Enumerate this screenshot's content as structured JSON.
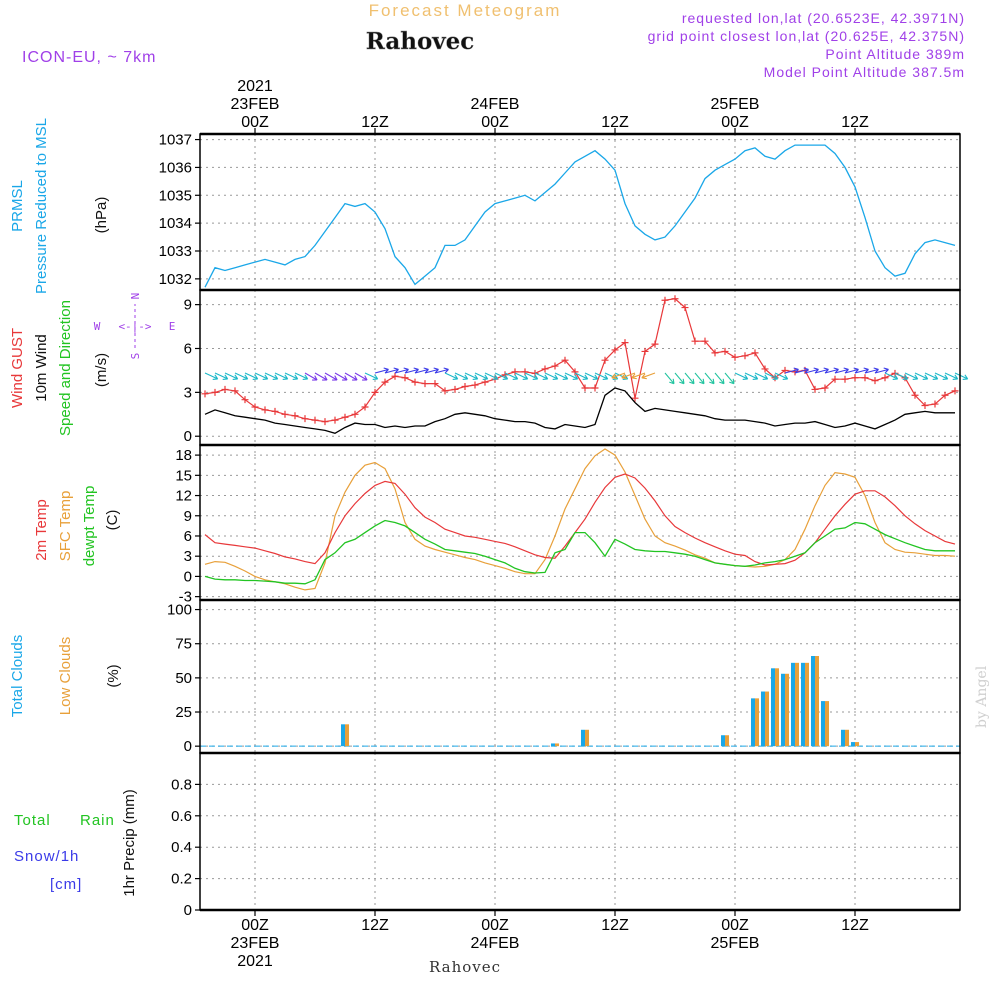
{
  "header": {
    "title": "Rahovec",
    "subtitle": "Forecast Meteogram",
    "model": "ICON-EU, ~ 7km",
    "requested": "requested lon,lat (20.6523E, 42.3971N)",
    "grid_point": "grid point closest lon,lat (20.625E, 42.375N)",
    "point_alt": "Point Altitude 389m",
    "model_alt": "Model Point Altitude 387.5m",
    "watermark": "by Angel",
    "footer": "Rahovec"
  },
  "time_axis": {
    "top": [
      {
        "h": 0,
        "lines": [
          "2021",
          "23FEB",
          "00Z"
        ]
      },
      {
        "h": 12,
        "lines": [
          "12Z"
        ]
      },
      {
        "h": 24,
        "lines": [
          "24FEB",
          "00Z"
        ]
      },
      {
        "h": 36,
        "lines": [
          "12Z"
        ]
      },
      {
        "h": 48,
        "lines": [
          "25FEB",
          "00Z"
        ]
      },
      {
        "h": 60,
        "lines": [
          "12Z"
        ]
      }
    ],
    "bottom": [
      {
        "h": 0,
        "lines": [
          "00Z",
          "23FEB",
          "2021"
        ]
      },
      {
        "h": 12,
        "lines": [
          "12Z"
        ]
      },
      {
        "h": 24,
        "lines": [
          "00Z",
          "24FEB"
        ]
      },
      {
        "h": 36,
        "lines": [
          "12Z"
        ]
      },
      {
        "h": 48,
        "lines": [
          "00Z",
          "25FEB"
        ]
      },
      {
        "h": 60,
        "lines": [
          "12Z"
        ]
      }
    ]
  },
  "colors": {
    "pressure": "#1aa7e8",
    "gust": "#e8383a",
    "wind": "#000000",
    "t2m": "#e8383a",
    "tsfc": "#e8a03a",
    "dewpt": "#22c422",
    "total_clouds": "#1aa7e8",
    "low_clouds": "#e8a03a",
    "rain": "#22c422",
    "snow": "#3a3ae8",
    "dir_label": "#a040e8",
    "title_orange": "#f0c070"
  },
  "chart_data": [
    {
      "type": "line",
      "id": "pressure",
      "labels": [
        "PRMSL",
        "Pressure Reduced to MSL",
        "(hPa)"
      ],
      "ylim": [
        1031.6,
        1037.2
      ],
      "yticks": [
        "1032",
        "1033",
        "1034",
        "1035",
        "1036",
        "1037"
      ],
      "x": [
        -5,
        -4,
        -3,
        -2,
        -1,
        0,
        1,
        2,
        3,
        4,
        5,
        6,
        7,
        8,
        9,
        10,
        11,
        12,
        13,
        14,
        15,
        16,
        17,
        18,
        19,
        20,
        21,
        22,
        23,
        24,
        25,
        26,
        27,
        28,
        29,
        30,
        31,
        32,
        33,
        34,
        35,
        36,
        37,
        38,
        39,
        40,
        41,
        42,
        43,
        44,
        45,
        46,
        47,
        48,
        49,
        50,
        51,
        52,
        53,
        54,
        55,
        56,
        57,
        58,
        59,
        60,
        61,
        62,
        63,
        64,
        65,
        66,
        67,
        68,
        69,
        70
      ],
      "series": [
        {
          "values": [
            1031.7,
            1032.4,
            1032.3,
            1032.4,
            1032.5,
            1032.6,
            1032.7,
            1032.6,
            1032.5,
            1032.7,
            1032.8,
            1033.2,
            1033.7,
            1034.2,
            1034.7,
            1034.6,
            1034.7,
            1034.4,
            1033.8,
            1032.8,
            1032.4,
            1031.8,
            1032.1,
            1032.4,
            1033.2,
            1033.2,
            1033.4,
            1033.9,
            1034.4,
            1034.7,
            1034.8,
            1034.9,
            1035.0,
            1034.8,
            1035.1,
            1035.4,
            1035.8,
            1036.2,
            1036.4,
            1036.6,
            1036.3,
            1035.9,
            1034.7,
            1033.9,
            1033.6,
            1033.4,
            1033.5,
            1033.9,
            1034.4,
            1034.9,
            1035.6,
            1035.9,
            1036.1,
            1036.3,
            1036.6,
            1036.7,
            1036.4,
            1036.3,
            1036.6,
            1036.8,
            1036.8,
            1036.8,
            1036.8,
            1036.5,
            1036.0,
            1035.3,
            1034.2,
            1033.0,
            1032.4,
            1032.1,
            1032.2,
            1032.9,
            1033.3,
            1033.4,
            1033.3,
            1033.2
          ]
        }
      ]
    },
    {
      "type": "line",
      "id": "wind",
      "labels": [
        "Wind GUST",
        "10m Wind",
        "Speed and Direction",
        "(m/s)"
      ],
      "compass": {
        "n": "N",
        "s": "S",
        "w": "W",
        "e": "E"
      },
      "ylim": [
        -0.6,
        10
      ],
      "yticks": [
        "0",
        "3",
        "6",
        "9"
      ],
      "x": [
        -5,
        -4,
        -3,
        -2,
        -1,
        0,
        1,
        2,
        3,
        4,
        5,
        6,
        7,
        8,
        9,
        10,
        11,
        12,
        13,
        14,
        15,
        16,
        17,
        18,
        19,
        20,
        21,
        22,
        23,
        24,
        25,
        26,
        27,
        28,
        29,
        30,
        31,
        32,
        33,
        34,
        35,
        36,
        37,
        38,
        39,
        40,
        41,
        42,
        43,
        44,
        45,
        46,
        47,
        48,
        49,
        50,
        51,
        52,
        53,
        54,
        55,
        56,
        57,
        58,
        59,
        60,
        61,
        62,
        63,
        64,
        65,
        66,
        67,
        68,
        69,
        70
      ],
      "series": [
        {
          "name": "Wind GUST",
          "values": [
            2.9,
            3.0,
            3.2,
            3.1,
            2.5,
            2.0,
            1.8,
            1.7,
            1.5,
            1.4,
            1.2,
            1.1,
            1.0,
            1.1,
            1.3,
            1.5,
            2.0,
            3.0,
            3.7,
            4.1,
            4.0,
            3.7,
            3.6,
            3.6,
            3.1,
            3.2,
            3.4,
            3.5,
            3.7,
            3.9,
            4.2,
            4.4,
            4.4,
            4.3,
            4.6,
            4.8,
            5.2,
            4.4,
            3.3,
            3.3,
            5.2,
            5.9,
            6.4,
            2.6,
            5.8,
            6.3,
            9.3,
            9.4,
            8.8,
            6.5,
            6.5,
            5.7,
            5.8,
            5.4,
            5.5,
            5.7,
            4.6,
            4.0,
            4.5,
            4.4,
            4.5,
            3.2,
            3.3,
            3.9,
            3.9,
            4.0,
            4.0,
            3.8,
            4.0,
            4.3,
            4.0,
            2.8,
            2.1,
            2.2,
            2.8,
            3.1
          ]
        },
        {
          "name": "10m Wind",
          "values": [
            1.5,
            1.8,
            1.6,
            1.4,
            1.3,
            1.2,
            1.1,
            0.9,
            0.8,
            0.7,
            0.6,
            0.5,
            0.4,
            0.2,
            0.6,
            0.9,
            0.8,
            0.8,
            0.6,
            0.7,
            0.6,
            0.7,
            0.7,
            1.0,
            1.2,
            1.5,
            1.6,
            1.5,
            1.4,
            1.2,
            1.1,
            1.0,
            1.0,
            0.9,
            0.6,
            0.5,
            0.8,
            0.7,
            0.6,
            0.8,
            2.8,
            3.3,
            3.1,
            2.3,
            1.7,
            1.9,
            1.8,
            1.7,
            1.6,
            1.5,
            1.4,
            1.2,
            1.1,
            1.1,
            1.1,
            1.0,
            0.9,
            0.7,
            0.8,
            0.9,
            0.9,
            1.0,
            0.8,
            0.6,
            0.7,
            0.9,
            0.7,
            0.5,
            0.8,
            1.1,
            1.5,
            1.6,
            1.7,
            1.6,
            1.6,
            1.6
          ]
        }
      ]
    },
    {
      "type": "line",
      "id": "temperature",
      "labels": [
        "2m Temp",
        "SFC Temp",
        "dewpt Temp",
        "(C)"
      ],
      "ylim": [
        -3.5,
        19.5
      ],
      "yticks": [
        "-3",
        "0",
        "3",
        "6",
        "9",
        "12",
        "15",
        "18"
      ],
      "x": [
        -5,
        -4,
        -3,
        -2,
        -1,
        0,
        1,
        2,
        3,
        4,
        5,
        6,
        7,
        8,
        9,
        10,
        11,
        12,
        13,
        14,
        15,
        16,
        17,
        18,
        19,
        20,
        21,
        22,
        23,
        24,
        25,
        26,
        27,
        28,
        29,
        30,
        31,
        32,
        33,
        34,
        35,
        36,
        37,
        38,
        39,
        40,
        41,
        42,
        43,
        44,
        45,
        46,
        47,
        48,
        49,
        50,
        51,
        52,
        53,
        54,
        55,
        56,
        57,
        58,
        59,
        60,
        61,
        62,
        63,
        64,
        65,
        66,
        67,
        68,
        69,
        70
      ],
      "series": [
        {
          "name": "2m Temp",
          "values": [
            6.2,
            5.0,
            4.8,
            4.6,
            4.4,
            4.2,
            3.8,
            3.4,
            2.9,
            2.6,
            2.2,
            1.9,
            3.5,
            6.5,
            9.0,
            10.8,
            12.3,
            13.5,
            14.1,
            13.8,
            12.2,
            10.2,
            8.8,
            8.0,
            7.0,
            6.5,
            6.0,
            5.8,
            5.5,
            5.2,
            4.9,
            4.4,
            3.8,
            3.2,
            2.8,
            2.7,
            4.5,
            6.5,
            8.5,
            11.0,
            13.2,
            14.7,
            15.2,
            14.6,
            13.1,
            11.2,
            9.0,
            7.4,
            6.5,
            5.7,
            5.0,
            4.4,
            3.8,
            3.3,
            3.1,
            2.2,
            1.7,
            1.8,
            1.9,
            2.4,
            3.5,
            5.0,
            7.0,
            9.0,
            10.7,
            12.2,
            12.7,
            12.7,
            11.8,
            10.5,
            9.0,
            7.8,
            6.8,
            6.0,
            5.2,
            4.8
          ]
        },
        {
          "name": "SFC Temp",
          "values": [
            1.8,
            2.2,
            2.1,
            1.5,
            0.8,
            0.0,
            -0.5,
            -0.8,
            -1.1,
            -1.6,
            -2.0,
            -1.8,
            2.0,
            9.0,
            12.5,
            15.0,
            16.5,
            16.9,
            16.0,
            13.0,
            8.0,
            5.5,
            4.5,
            4.0,
            3.6,
            3.2,
            2.8,
            2.5,
            2.0,
            1.6,
            1.2,
            0.7,
            0.4,
            0.4,
            2.5,
            6.0,
            10.0,
            13.0,
            16.0,
            17.9,
            18.9,
            18.0,
            15.5,
            12.0,
            8.5,
            6.0,
            5.0,
            4.5,
            3.9,
            3.2,
            2.7,
            2.0,
            1.8,
            1.6,
            1.5,
            1.4,
            1.5,
            1.8,
            2.5,
            4.0,
            7.0,
            10.5,
            13.5,
            15.4,
            15.2,
            14.7,
            12.0,
            8.0,
            5.0,
            4.0,
            3.6,
            3.5,
            3.3,
            3.1,
            3.1,
            3.0
          ]
        },
        {
          "name": "dewpt Temp",
          "values": [
            0.0,
            -0.4,
            -0.5,
            -0.5,
            -0.6,
            -0.6,
            -0.7,
            -0.8,
            -1.0,
            -1.0,
            -1.1,
            -0.5,
            2.5,
            3.5,
            5.0,
            5.5,
            6.5,
            7.5,
            8.3,
            8.0,
            7.5,
            6.5,
            5.5,
            4.8,
            4.0,
            3.8,
            3.6,
            3.4,
            3.0,
            2.5,
            2.0,
            1.2,
            0.7,
            0.5,
            0.6,
            3.5,
            4.0,
            6.5,
            6.5,
            5.0,
            3.0,
            5.5,
            4.8,
            4.0,
            3.8,
            3.7,
            3.7,
            3.5,
            3.3,
            3.0,
            2.5,
            2.0,
            1.8,
            1.6,
            1.5,
            1.7,
            2.0,
            2.2,
            2.5,
            3.0,
            3.5,
            5.0,
            6.0,
            7.0,
            7.2,
            8.0,
            7.8,
            7.0,
            6.2,
            5.6,
            5.0,
            4.5,
            4.0,
            3.8,
            3.8,
            3.8
          ]
        }
      ]
    },
    {
      "type": "bar",
      "id": "clouds",
      "labels": [
        "Total Clouds",
        "Low Clouds",
        "(%)"
      ],
      "ylim": [
        -5,
        107
      ],
      "yticks": [
        "0",
        "25",
        "50",
        "75",
        "100"
      ],
      "x": [
        9,
        30,
        33,
        47,
        50,
        51,
        52,
        53,
        54,
        55,
        56,
        57,
        59,
        60
      ],
      "series": [
        {
          "name": "Total Clouds",
          "values": [
            16,
            2,
            12,
            8,
            35,
            40,
            57,
            53,
            61,
            61,
            66,
            33,
            12,
            3
          ]
        },
        {
          "name": "Low Clouds",
          "values": [
            16,
            2,
            12,
            8,
            35,
            40,
            57,
            53,
            61,
            61,
            66,
            33,
            12,
            3
          ]
        }
      ]
    },
    {
      "type": "bar",
      "id": "precip",
      "labels": [
        "Total",
        "Rain",
        "Snow/1h",
        "[cm]",
        "1hr Precip (mm)"
      ],
      "ylim": [
        0,
        1.0
      ],
      "yticks": [
        "0",
        "0.2",
        "0.4",
        "0.6",
        "0.8"
      ],
      "x": [],
      "series": [
        {
          "name": "Rain",
          "values": []
        },
        {
          "name": "Snow/1h",
          "values": []
        }
      ]
    }
  ]
}
